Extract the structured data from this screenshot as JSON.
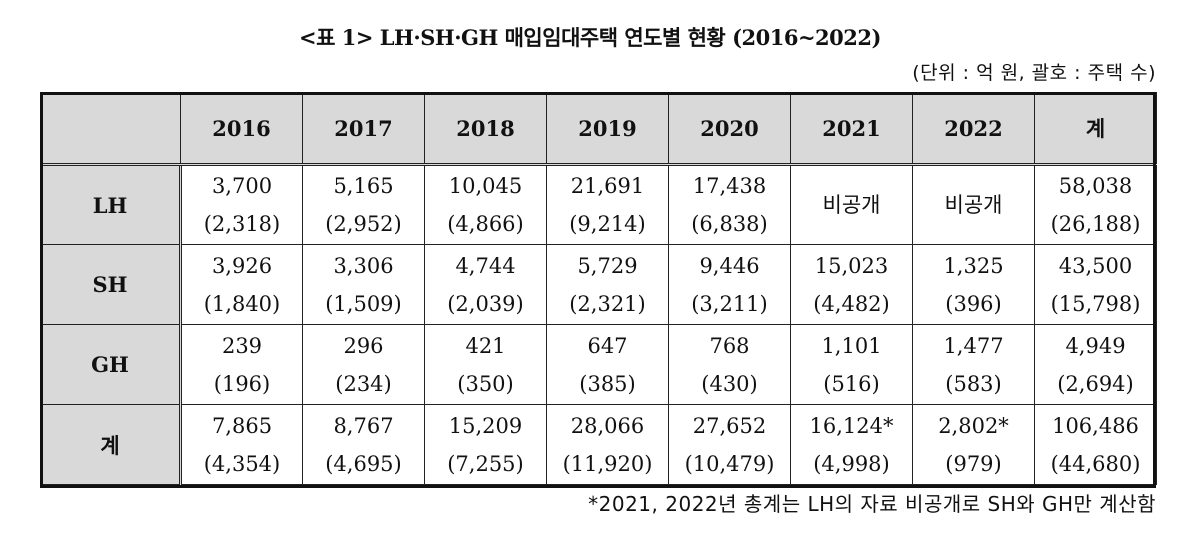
{
  "title": "<표 1> LH·SH·GH 매입임대주택 연도별 현황 (2016~2022)",
  "unit_note": "(단위 : 억 원, 괄호 : 주택 수)",
  "table": {
    "corner": "",
    "headers": [
      "2016",
      "2017",
      "2018",
      "2019",
      "2020",
      "2021",
      "2022",
      "계"
    ],
    "rows": [
      {
        "label": "LH",
        "cells": [
          {
            "amount": "3,700",
            "count": "(2,318)"
          },
          {
            "amount": "5,165",
            "count": "(2,952)"
          },
          {
            "amount": "10,045",
            "count": "(4,866)"
          },
          {
            "amount": "21,691",
            "count": "(9,214)"
          },
          {
            "amount": "17,438",
            "count": "(6,838)"
          },
          {
            "amount": "비공개",
            "count": ""
          },
          {
            "amount": "비공개",
            "count": ""
          },
          {
            "amount": "58,038",
            "count": "(26,188)"
          }
        ]
      },
      {
        "label": "SH",
        "cells": [
          {
            "amount": "3,926",
            "count": "(1,840)"
          },
          {
            "amount": "3,306",
            "count": "(1,509)"
          },
          {
            "amount": "4,744",
            "count": "(2,039)"
          },
          {
            "amount": "5,729",
            "count": "(2,321)"
          },
          {
            "amount": "9,446",
            "count": "(3,211)"
          },
          {
            "amount": "15,023",
            "count": "(4,482)"
          },
          {
            "amount": "1,325",
            "count": "(396)"
          },
          {
            "amount": "43,500",
            "count": "(15,798)"
          }
        ]
      },
      {
        "label": "GH",
        "cells": [
          {
            "amount": "239",
            "count": "(196)"
          },
          {
            "amount": "296",
            "count": "(234)"
          },
          {
            "amount": "421",
            "count": "(350)"
          },
          {
            "amount": "647",
            "count": "(385)"
          },
          {
            "amount": "768",
            "count": "(430)"
          },
          {
            "amount": "1,101",
            "count": "(516)"
          },
          {
            "amount": "1,477",
            "count": "(583)"
          },
          {
            "amount": "4,949",
            "count": "(2,694)"
          }
        ]
      },
      {
        "label": "계",
        "cells": [
          {
            "amount": "7,865",
            "count": "(4,354)"
          },
          {
            "amount": "8,767",
            "count": "(4,695)"
          },
          {
            "amount": "15,209",
            "count": "(7,255)"
          },
          {
            "amount": "28,066",
            "count": "(11,920)"
          },
          {
            "amount": "27,652",
            "count": "(10,479)"
          },
          {
            "amount": "16,124*",
            "count": "(4,998)"
          },
          {
            "amount": "2,802*",
            "count": "(979)"
          },
          {
            "amount": "106,486",
            "count": "(44,680)"
          }
        ]
      }
    ]
  },
  "footnote": "*2021, 2022년 총계는 LH의 자료 비공개로 SH와 GH만 계산함",
  "colors": {
    "header_bg": "#d9d9d9",
    "border": "#222222",
    "text": "#111111"
  }
}
